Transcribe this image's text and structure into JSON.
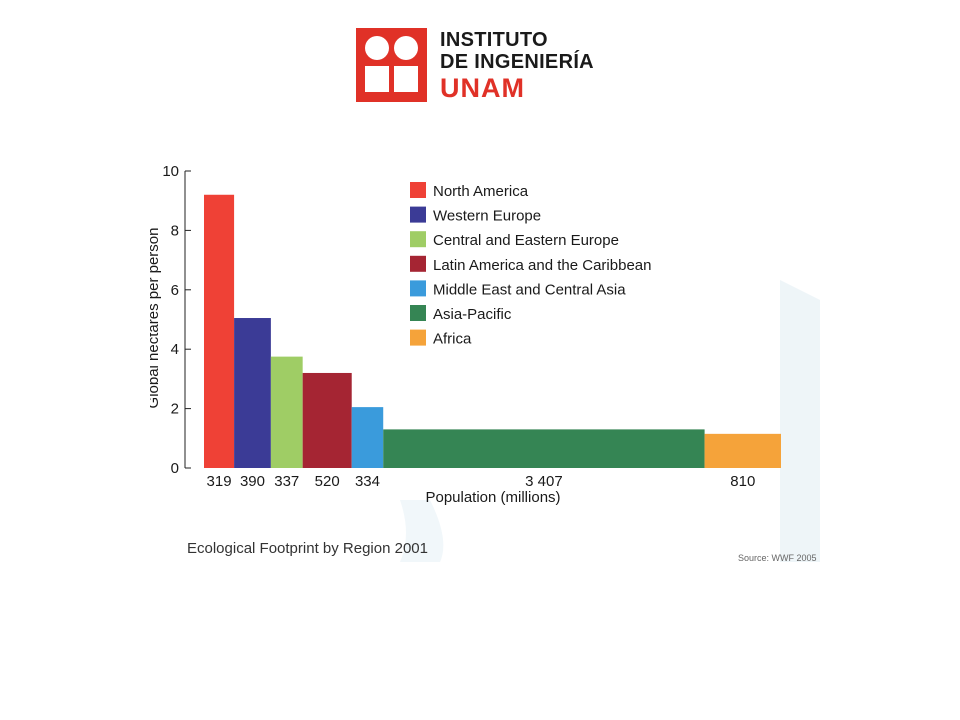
{
  "logo": {
    "line1": "INSTITUTO",
    "line2": "DE INGENIERÍA",
    "line3": "UNAM",
    "brand_color": "#e03127"
  },
  "chart_data": {
    "type": "bar",
    "title": "Ecological Footprint by Region 2001",
    "source": "Source: WWF 2005",
    "xlabel": "Population (millions)",
    "ylabel": "Global hectares per person",
    "ylim": [
      0,
      10
    ],
    "yticks": [
      0,
      2,
      4,
      6,
      8,
      10
    ],
    "grid": false,
    "legend_placement": "top-center",
    "variable_width": true,
    "categories": [
      "North America",
      "Western Europe",
      "Central and Eastern Europe",
      "Latin America and the Caribbean",
      "Middle East and Central Asia",
      "Asia-Pacific",
      "Africa"
    ],
    "widths": [
      319,
      390,
      337,
      520,
      334,
      3407,
      810
    ],
    "width_labels": [
      "319",
      "390",
      "337",
      "520",
      "334",
      "3 407",
      "810"
    ],
    "values": [
      9.2,
      5.05,
      3.75,
      3.2,
      2.05,
      1.3,
      1.15
    ],
    "colors": [
      "#ef4136",
      "#3b3b96",
      "#9fcd65",
      "#a52533",
      "#3a9bdc",
      "#358554",
      "#f5a33a"
    ]
  }
}
